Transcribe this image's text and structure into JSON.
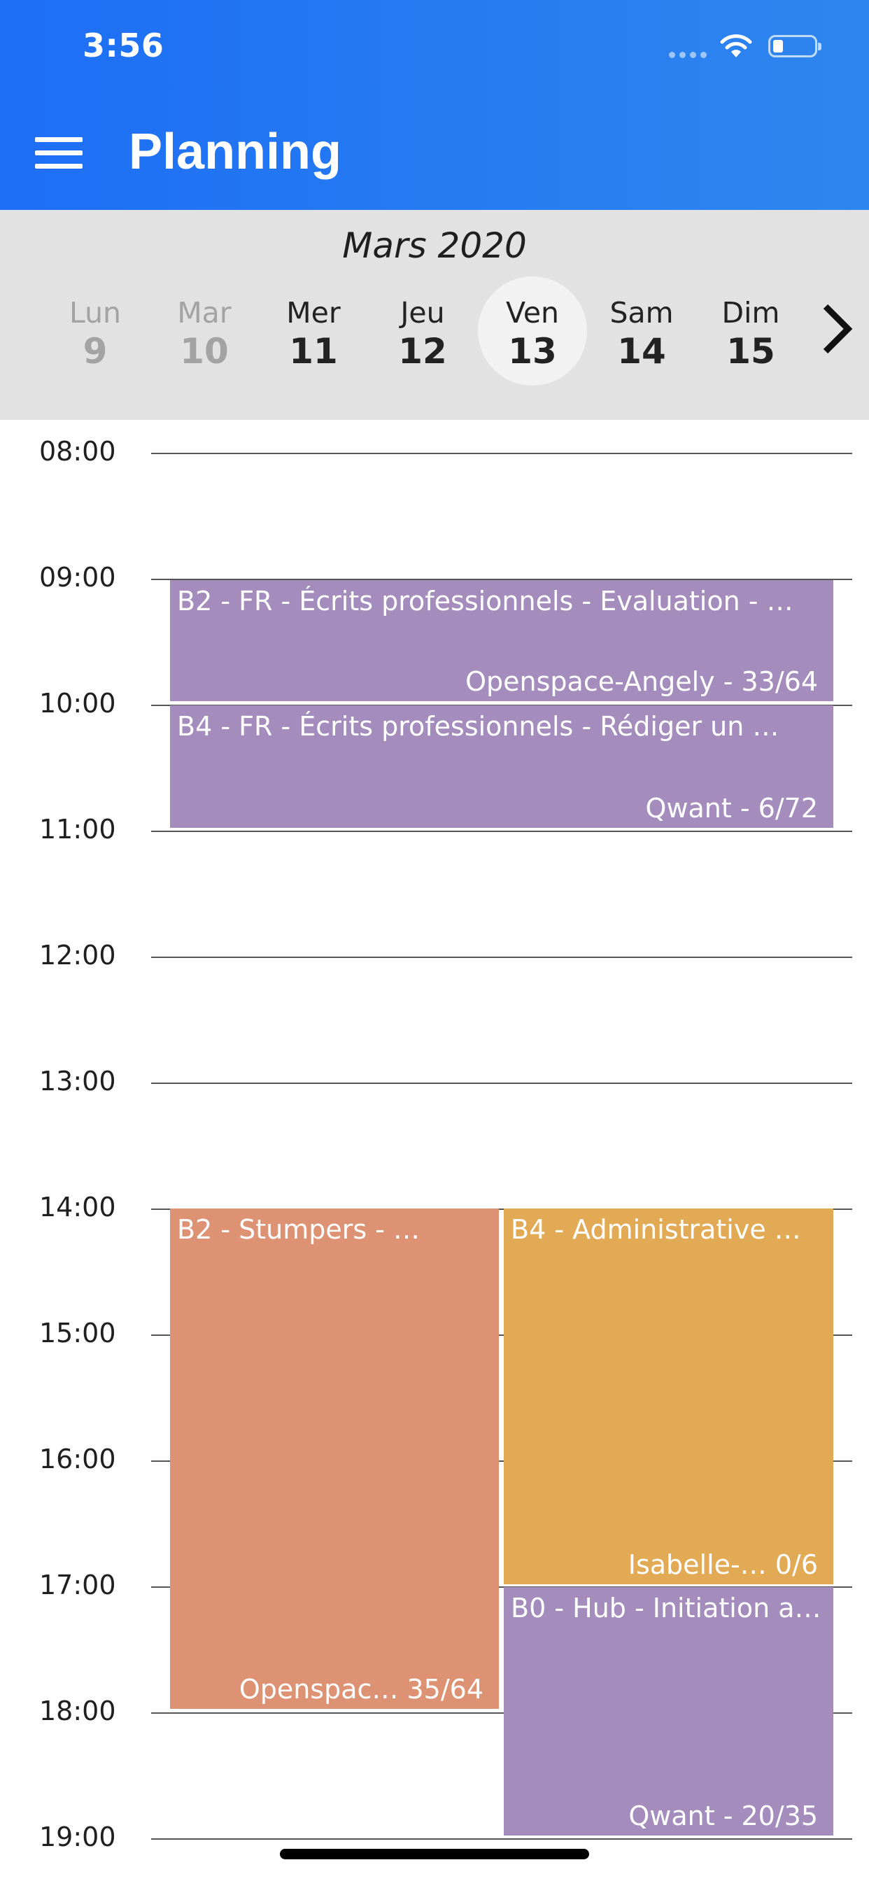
{
  "status_bar": {
    "time": "3:56"
  },
  "header": {
    "title": "Planning",
    "menu_icon": "hamburger-menu-icon"
  },
  "week": {
    "month": "Mars 2020",
    "days": [
      {
        "name": "Lun",
        "num": "9",
        "state": "past"
      },
      {
        "name": "Mar",
        "num": "10",
        "state": "past"
      },
      {
        "name": "Mer",
        "num": "11",
        "state": "normal"
      },
      {
        "name": "Jeu",
        "num": "12",
        "state": "normal"
      },
      {
        "name": "Ven",
        "num": "13",
        "state": "selected"
      },
      {
        "name": "Sam",
        "num": "14",
        "state": "normal"
      },
      {
        "name": "Dim",
        "num": "15",
        "state": "normal"
      }
    ],
    "next_icon": "chevron-right-icon"
  },
  "calendar": {
    "hours": [
      "08:00",
      "09:00",
      "10:00",
      "11:00",
      "12:00",
      "13:00",
      "14:00",
      "15:00",
      "16:00",
      "17:00",
      "18:00",
      "19:00"
    ],
    "events": [
      {
        "title": "B2 - FR - Écrits professionnels - Evaluation - …",
        "subtitle": "Openspace-Angely - 33/64",
        "color": "#a48cbc"
      },
      {
        "title": "B4 - FR - Écrits professionnels - Rédiger un …",
        "subtitle": "Qwant - 6/72",
        "color": "#a48cbc"
      },
      {
        "title": "B2 - Stumpers - …",
        "subtitle": "Openspac… 35/64",
        "color": "#dd9373"
      },
      {
        "title": "B4 - Administrative …",
        "subtitle": "Isabelle-…   0/6",
        "color": "#e2aa54"
      },
      {
        "title": "B0 - Hub - Initiation a…",
        "subtitle": "Qwant - 20/35",
        "color": "#a48cbc"
      }
    ]
  }
}
